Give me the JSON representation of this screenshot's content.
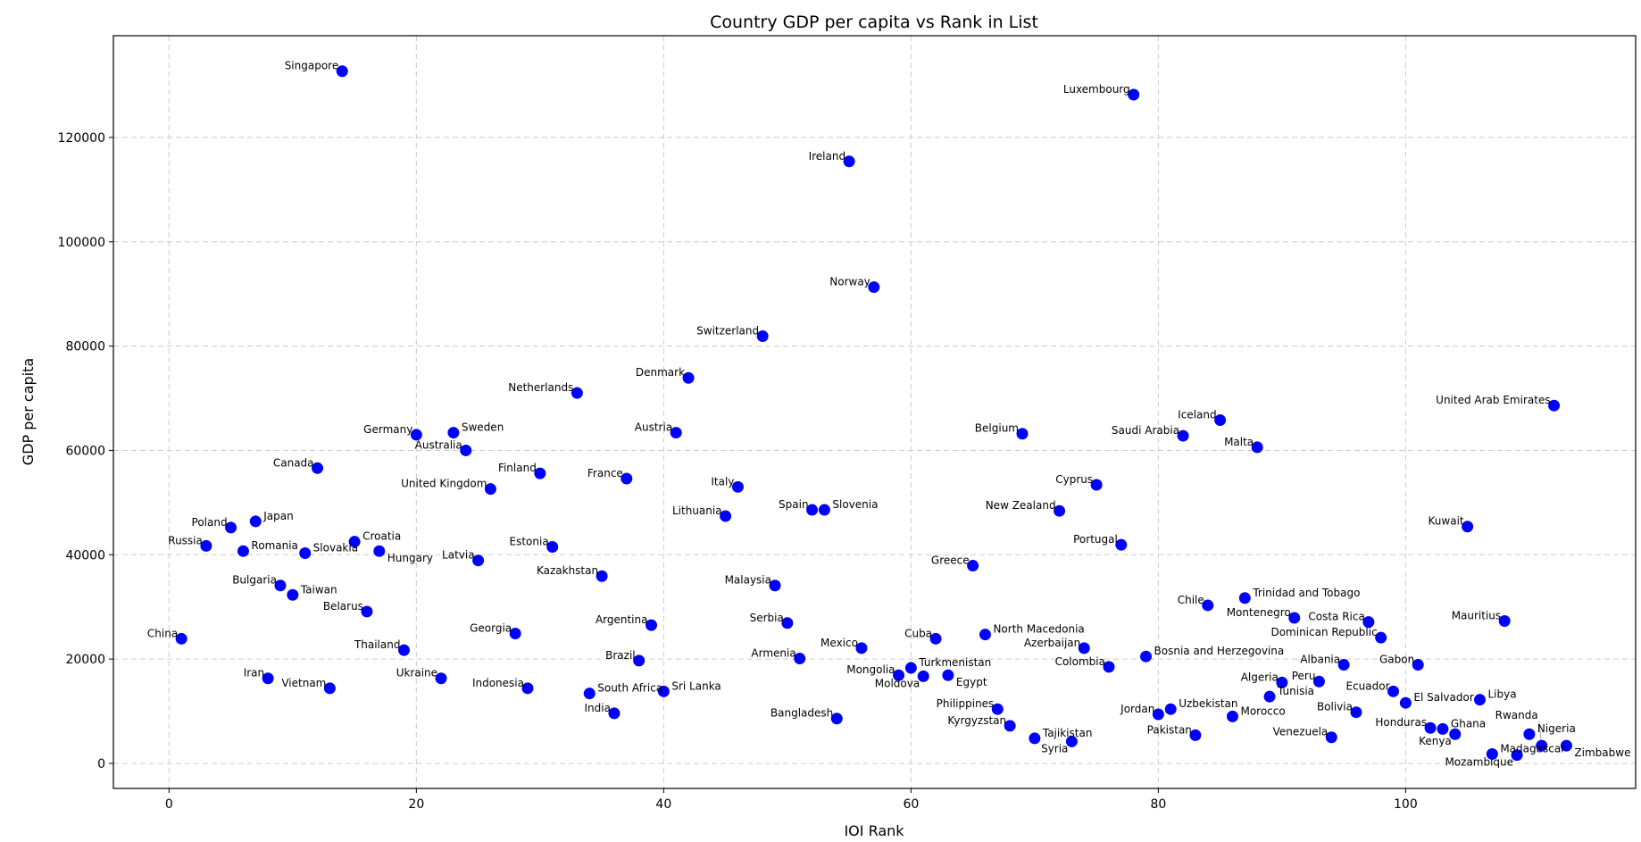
{
  "chart_data": {
    "type": "scatter",
    "title": "Country GDP per capita vs Rank in List",
    "xlabel": "IOI Rank",
    "ylabel": "GDP per capita",
    "xlim": [
      -4.5,
      118.6
    ],
    "ylim": [
      -4800,
      139500
    ],
    "xticks": [
      0,
      20,
      40,
      60,
      80,
      100
    ],
    "yticks": [
      0,
      20000,
      40000,
      60000,
      80000,
      100000,
      120000
    ],
    "grid": true,
    "point_color": "#0000ff",
    "points": [
      {
        "label": "China",
        "x": 1,
        "y": 23900
      },
      {
        "label": "Russia",
        "x": 3,
        "y": 41700
      },
      {
        "label": "Poland",
        "x": 5,
        "y": 45200
      },
      {
        "label": "Romania",
        "x": 6,
        "y": 40700
      },
      {
        "label": "Japan",
        "x": 7,
        "y": 46400
      },
      {
        "label": "Iran",
        "x": 8,
        "y": 16300
      },
      {
        "label": "Bulgaria",
        "x": 9,
        "y": 34100
      },
      {
        "label": "Taiwan",
        "x": 10,
        "y": 32300
      },
      {
        "label": "Slovakia",
        "x": 11,
        "y": 40300
      },
      {
        "label": "Canada",
        "x": 12,
        "y": 56600
      },
      {
        "label": "Vietnam",
        "x": 13,
        "y": 14400
      },
      {
        "label": "Singapore",
        "x": 14,
        "y": 132700
      },
      {
        "label": "Croatia",
        "x": 15,
        "y": 42500
      },
      {
        "label": "Belarus",
        "x": 16,
        "y": 29100
      },
      {
        "label": "Hungary",
        "x": 17,
        "y": 40700
      },
      {
        "label": "Thailand",
        "x": 19,
        "y": 21700
      },
      {
        "label": "Germany",
        "x": 20,
        "y": 63000
      },
      {
        "label": "Ukraine",
        "x": 22,
        "y": 16300
      },
      {
        "label": "Sweden",
        "x": 23,
        "y": 63400
      },
      {
        "label": "Australia",
        "x": 24,
        "y": 60000
      },
      {
        "label": "Latvia",
        "x": 25,
        "y": 38900
      },
      {
        "label": "United Kingdom",
        "x": 26,
        "y": 52600
      },
      {
        "label": "Georgia",
        "x": 28,
        "y": 24900
      },
      {
        "label": "Indonesia",
        "x": 29,
        "y": 14400
      },
      {
        "label": "Finland",
        "x": 30,
        "y": 55600
      },
      {
        "label": "Estonia",
        "x": 31,
        "y": 41500
      },
      {
        "label": "Netherlands",
        "x": 33,
        "y": 71000
      },
      {
        "label": "South Africa",
        "x": 34,
        "y": 13400
      },
      {
        "label": "Kazakhstan",
        "x": 35,
        "y": 35900
      },
      {
        "label": "India",
        "x": 36,
        "y": 9600
      },
      {
        "label": "France",
        "x": 37,
        "y": 54600
      },
      {
        "label": "Brazil",
        "x": 38,
        "y": 19700
      },
      {
        "label": "Argentina",
        "x": 39,
        "y": 26500
      },
      {
        "label": "Sri Lanka",
        "x": 40,
        "y": 13800
      },
      {
        "label": "Austria",
        "x": 41,
        "y": 63400
      },
      {
        "label": "Denmark",
        "x": 42,
        "y": 73900
      },
      {
        "label": "Lithuania",
        "x": 45,
        "y": 47400
      },
      {
        "label": "Italy",
        "x": 46,
        "y": 53000
      },
      {
        "label": "Switzerland",
        "x": 48,
        "y": 81900
      },
      {
        "label": "Malaysia",
        "x": 49,
        "y": 34100
      },
      {
        "label": "Serbia",
        "x": 50,
        "y": 26900
      },
      {
        "label": "Armenia",
        "x": 51,
        "y": 20100
      },
      {
        "label": "Spain",
        "x": 52,
        "y": 48600
      },
      {
        "label": "Slovenia",
        "x": 53,
        "y": 48600
      },
      {
        "label": "Bangladesh",
        "x": 54,
        "y": 8600
      },
      {
        "label": "Ireland",
        "x": 55,
        "y": 115400
      },
      {
        "label": "Mexico",
        "x": 56,
        "y": 22100
      },
      {
        "label": "Norway",
        "x": 57,
        "y": 91300
      },
      {
        "label": "Mongolia",
        "x": 59,
        "y": 16900
      },
      {
        "label": "Turkmenistan",
        "x": 60,
        "y": 18300
      },
      {
        "label": "Moldova",
        "x": 61,
        "y": 16700
      },
      {
        "label": "Cuba",
        "x": 62,
        "y": 23900
      },
      {
        "label": "Egypt",
        "x": 63,
        "y": 16900
      },
      {
        "label": "Greece",
        "x": 65,
        "y": 37900
      },
      {
        "label": "North Macedonia",
        "x": 66,
        "y": 24700
      },
      {
        "label": "Philippines",
        "x": 67,
        "y": 10400
      },
      {
        "label": "Kyrgyzstan",
        "x": 68,
        "y": 7200
      },
      {
        "label": "Belgium",
        "x": 69,
        "y": 63200
      },
      {
        "label": "Tajikistan",
        "x": 70,
        "y": 4800
      },
      {
        "label": "New Zealand",
        "x": 72,
        "y": 48400
      },
      {
        "label": "Syria",
        "x": 73,
        "y": 4200
      },
      {
        "label": "Azerbaijan",
        "x": 74,
        "y": 22100
      },
      {
        "label": "Cyprus",
        "x": 75,
        "y": 53400
      },
      {
        "label": "Colombia",
        "x": 76,
        "y": 18500
      },
      {
        "label": "Portugal",
        "x": 77,
        "y": 41900
      },
      {
        "label": "Luxembourg",
        "x": 78,
        "y": 128200
      },
      {
        "label": "Bosnia and Herzegovina",
        "x": 79,
        "y": 20500
      },
      {
        "label": "Jordan",
        "x": 80,
        "y": 9400
      },
      {
        "label": "Uzbekistan",
        "x": 81,
        "y": 10400
      },
      {
        "label": "Saudi Arabia",
        "x": 82,
        "y": 62800
      },
      {
        "label": "Pakistan",
        "x": 83,
        "y": 5400
      },
      {
        "label": "Chile",
        "x": 84,
        "y": 30300
      },
      {
        "label": "Iceland",
        "x": 85,
        "y": 65800
      },
      {
        "label": "Morocco",
        "x": 86,
        "y": 9000
      },
      {
        "label": "Trinidad and Tobago",
        "x": 87,
        "y": 31700
      },
      {
        "label": "Malta",
        "x": 88,
        "y": 60600
      },
      {
        "label": "Tunisia",
        "x": 89,
        "y": 12800
      },
      {
        "label": "Algeria",
        "x": 90,
        "y": 15500
      },
      {
        "label": "Montenegro",
        "x": 91,
        "y": 27900
      },
      {
        "label": "Peru",
        "x": 93,
        "y": 15700
      },
      {
        "label": "Venezuela",
        "x": 94,
        "y": 5000
      },
      {
        "label": "Albania",
        "x": 95,
        "y": 18900
      },
      {
        "label": "Bolivia",
        "x": 96,
        "y": 9800
      },
      {
        "label": "Costa Rica",
        "x": 97,
        "y": 27100
      },
      {
        "label": "Dominican Republic",
        "x": 98,
        "y": 24100
      },
      {
        "label": "Ecuador",
        "x": 99,
        "y": 13800
      },
      {
        "label": "El Salvador",
        "x": 100,
        "y": 11600
      },
      {
        "label": "Gabon",
        "x": 101,
        "y": 18900
      },
      {
        "label": "Honduras",
        "x": 102,
        "y": 6800
      },
      {
        "label": "Ghana",
        "x": 103,
        "y": 6600
      },
      {
        "label": "Kenya",
        "x": 104,
        "y": 5600
      },
      {
        "label": "Kuwait",
        "x": 105,
        "y": 45400
      },
      {
        "label": "Libya",
        "x": 106,
        "y": 12200
      },
      {
        "label": "Madagascar",
        "x": 107,
        "y": 1800
      },
      {
        "label": "Mauritius",
        "x": 108,
        "y": 27300
      },
      {
        "label": "Mozambique",
        "x": 109,
        "y": 1600
      },
      {
        "label": "Nigeria",
        "x": 110,
        "y": 5600
      },
      {
        "label": "Rwanda",
        "x": 111,
        "y": 3400
      },
      {
        "label": "United Arab Emirates",
        "x": 112,
        "y": 68600
      },
      {
        "label": "Zimbabwe",
        "x": 113,
        "y": 3400
      }
    ]
  }
}
